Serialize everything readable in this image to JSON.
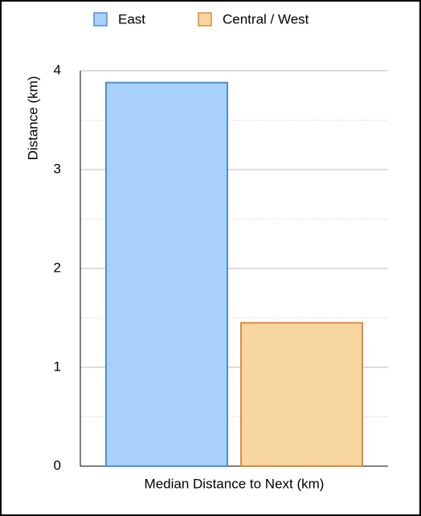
{
  "chart_data": {
    "type": "bar",
    "categories": [
      "Median Distance to Next (km)"
    ],
    "series": [
      {
        "name": "East",
        "color": "#a8d0f8",
        "edge_color": "#4a8fd6",
        "values": [
          3.88
        ]
      },
      {
        "name": "Central / West",
        "color": "#f8d6a0",
        "edge_color": "#e08a3c",
        "values": [
          1.45
        ]
      }
    ],
    "y_label": "Distance (km)",
    "ylim": [
      0,
      4
    ],
    "yticks": [
      0,
      1,
      2,
      3,
      4
    ],
    "minor_yticks": [
      0.5,
      1.5,
      2.5,
      3.5
    ],
    "grid": true,
    "legend": "top"
  }
}
